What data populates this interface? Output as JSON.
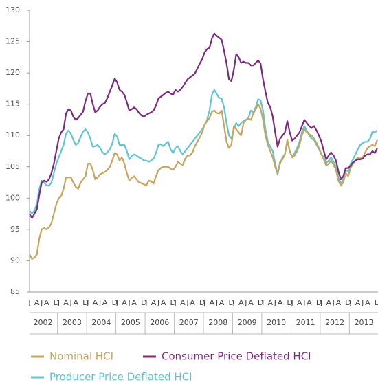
{
  "chart_data": {
    "type": "line",
    "categories": [
      "J",
      null,
      null,
      "A",
      null,
      "J",
      null,
      "A",
      null,
      null,
      null,
      "D",
      "J",
      null,
      null,
      "A",
      null,
      "J",
      null,
      "A",
      null,
      null,
      null,
      "D",
      "J",
      null,
      null,
      "A",
      null,
      "J",
      null,
      "A",
      null,
      null,
      null,
      "D",
      "J",
      null,
      null,
      "A",
      null,
      "J",
      null,
      "A",
      null,
      null,
      null,
      "D",
      "J",
      null,
      null,
      "A",
      null,
      "J",
      null,
      "A",
      null,
      null,
      null,
      "D",
      "J",
      null,
      null,
      "A",
      null,
      "J",
      null,
      "A",
      null,
      null,
      null,
      "D",
      "J",
      null,
      null,
      "A",
      null,
      "J",
      null,
      "A",
      null,
      null,
      null,
      "D",
      "J",
      null,
      null,
      "A",
      null,
      "J",
      null,
      "A",
      null,
      null,
      null,
      "D",
      "J",
      null,
      null,
      "A",
      null,
      "J",
      null,
      "A",
      null,
      null,
      null,
      "D",
      "J",
      null,
      null,
      "A",
      null,
      "J",
      null,
      "A",
      null,
      null,
      null,
      "D",
      "J",
      null,
      null,
      "A",
      null,
      "J",
      null,
      "A",
      null,
      null,
      null,
      "D",
      "J",
      null,
      null,
      "A",
      null,
      "J",
      null,
      "A",
      null,
      null,
      null,
      "D"
    ],
    "years": [
      "2002",
      "2003",
      "2004",
      "2005",
      "2006",
      "2007",
      "2008",
      "2009",
      "2010",
      "2011",
      "2012",
      "2013"
    ],
    "ylim": [
      85,
      130
    ],
    "yticks": [
      85,
      90,
      95,
      100,
      105,
      110,
      115,
      120,
      125,
      130
    ],
    "series": [
      {
        "name": "Nominal HCI",
        "color": "#c9a45c",
        "values": [
          91,
          90.3,
          90.5,
          91,
          93.5,
          95,
          95.2,
          95,
          95.3,
          96,
          97.5,
          99,
          100,
          100.3,
          101.5,
          103.3,
          103.3,
          103.3,
          102.5,
          101.8,
          101.5,
          102.5,
          103,
          103.5,
          105.5,
          105.5,
          104.5,
          103,
          103.3,
          103.8,
          104,
          104.2,
          104.5,
          105,
          106,
          107.2,
          107,
          106,
          106.5,
          105.5,
          104,
          102.8,
          103.2,
          103.5,
          103,
          102.5,
          102.4,
          102.2,
          102,
          102.8,
          102.7,
          102.3,
          103.5,
          104.5,
          104.8,
          105,
          105,
          105,
          104.7,
          104.5,
          105,
          105.8,
          105.5,
          105.3,
          106.3,
          106.8,
          106.8,
          107.3,
          108.3,
          109,
          109.7,
          110.5,
          111.8,
          112.3,
          112.8,
          113.8,
          114,
          113.6,
          113.5,
          114,
          111.5,
          109,
          108,
          108.5,
          111.5,
          111,
          110.5,
          110,
          112,
          112.5,
          112.7,
          112.5,
          113.5,
          114.2,
          115,
          114.3,
          112.5,
          110,
          108.5,
          107.5,
          106.5,
          105,
          104,
          105.8,
          106.2,
          107,
          109.3,
          107.5,
          106.5,
          106.8,
          107.5,
          108.5,
          110,
          111,
          110.5,
          110.2,
          110,
          109.5,
          108.8,
          108,
          107,
          106.2,
          105.2,
          105.5,
          106,
          105.3,
          104.5,
          102.8,
          102,
          102.5,
          104,
          103.5,
          104.8,
          105.5,
          106,
          106.5,
          106.3,
          106.5,
          107.3,
          108,
          108.3,
          108.5,
          108.3,
          109.3
        ]
      },
      {
        "name": "Consumer Price Deflated HCI",
        "color": "#7d2a7e",
        "values": [
          97.5,
          96.8,
          97.5,
          98.2,
          100.5,
          102.5,
          102.8,
          102.6,
          103,
          104,
          105.5,
          107.5,
          109.5,
          110.5,
          111,
          113.5,
          114.2,
          114,
          113,
          112.5,
          112.8,
          113.3,
          113.8,
          115.5,
          116.7,
          116.7,
          115,
          113.7,
          114,
          114.6,
          115,
          115.2,
          116,
          117,
          118,
          119.1,
          118.5,
          117.3,
          117,
          116.5,
          115.3,
          114,
          114.2,
          114.5,
          114.2,
          113.6,
          113.2,
          113,
          113.3,
          113.5,
          113.7,
          114,
          114.8,
          115.9,
          116.2,
          116.5,
          116.8,
          117,
          116.7,
          116.5,
          117.3,
          117,
          117.3,
          117.8,
          118.4,
          119,
          119.3,
          119.6,
          119.9,
          120.7,
          121.5,
          122.2,
          123.3,
          123.8,
          124,
          125.5,
          126.3,
          125.9,
          125.6,
          125.3,
          123.5,
          121.5,
          119,
          118.7,
          120.5,
          123,
          122.5,
          121.6,
          121.8,
          121.6,
          121.6,
          121.2,
          121.2,
          121.6,
          122,
          121.5,
          119,
          117,
          115.2,
          114.5,
          113,
          110.5,
          108.2,
          109.5,
          110,
          110.5,
          112.3,
          110.5,
          109.2,
          109.5,
          110,
          110.5,
          111.5,
          112.5,
          112,
          111.5,
          111.2,
          111.5,
          110.8,
          110,
          109,
          107.5,
          106.2,
          106.8,
          107.3,
          106.8,
          106,
          104.3,
          103,
          103.5,
          104.8,
          104.8,
          105.2,
          105.7,
          106,
          106.2,
          106.2,
          106.3,
          106.8,
          107,
          107,
          107.5,
          107.2,
          108
        ]
      },
      {
        "name": "Producer Price Deflated HCI",
        "color": "#5fc5d5",
        "values": [
          98,
          97.5,
          98,
          99,
          101.5,
          102.8,
          102.5,
          102,
          102,
          102.5,
          104,
          105.5,
          106.5,
          107.5,
          108.5,
          110.3,
          110.8,
          110.3,
          109.3,
          108.5,
          108.8,
          109.8,
          110.6,
          111,
          110.5,
          109.5,
          108.2,
          108.3,
          108.5,
          108,
          107.3,
          107,
          107.3,
          107.8,
          108.7,
          110.3,
          109.8,
          108.5,
          108.5,
          108.5,
          107.5,
          106.2,
          106.7,
          107,
          106.8,
          106.5,
          106.3,
          106,
          106,
          105.8,
          106,
          106.3,
          107.2,
          108.5,
          108.6,
          108.3,
          108.7,
          109,
          107.8,
          107.2,
          108,
          108.3,
          107.5,
          107,
          107.5,
          108,
          108.5,
          109,
          109.5,
          110,
          110.5,
          111,
          111.6,
          112.5,
          114,
          116.5,
          117.3,
          116.6,
          116,
          115.9,
          114.5,
          112,
          110,
          109.5,
          111,
          112,
          111.5,
          112,
          112.3,
          112.5,
          112.8,
          114,
          113.7,
          114.5,
          115.8,
          115.6,
          114,
          111,
          109,
          108.2,
          107.5,
          105.5,
          103.8,
          105.5,
          106.5,
          107,
          109,
          107.5,
          106.5,
          107.2,
          108,
          109,
          110.5,
          111.5,
          110.8,
          110,
          109.5,
          109.3,
          108.5,
          107.8,
          107,
          106.5,
          105.6,
          106,
          106.5,
          105.8,
          105,
          103.3,
          102.3,
          103,
          104.5,
          104.3,
          105.5,
          106.2,
          107,
          107.8,
          108.5,
          108.8,
          109,
          109,
          109.5,
          110.6,
          110.5,
          110.8
        ]
      }
    ]
  }
}
